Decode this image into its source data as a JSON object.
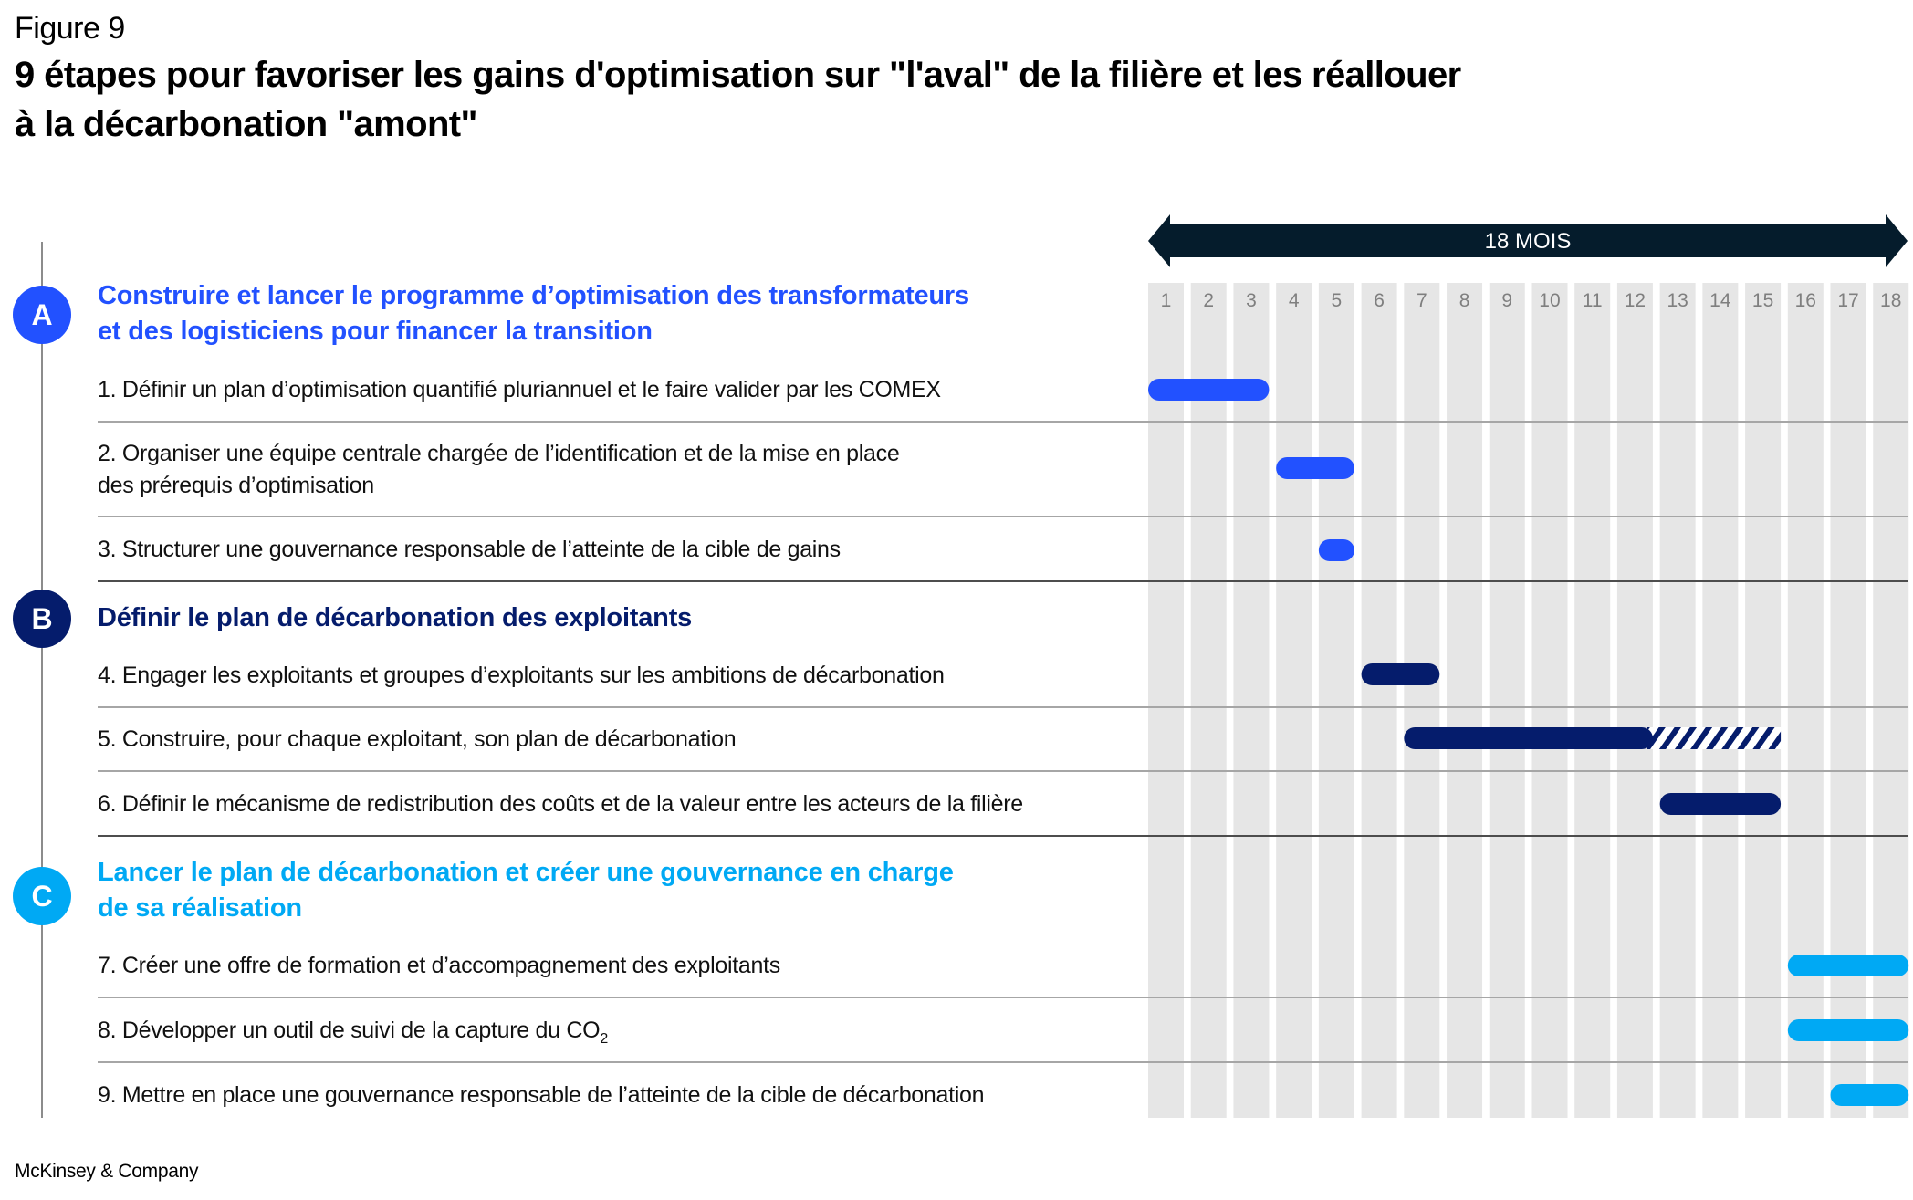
{
  "figure_label": "Figure 9",
  "title": {
    "line1": "9 étapes pour favoriser les gains d'optimisation sur \"l'aval\" de la filière et les réallouer",
    "line2": "à la décarbonation \"amont\""
  },
  "footer": "McKinsey & Company",
  "colors": {
    "section_A": "#2251ff",
    "section_B": "#051c6c",
    "section_C": "#00a9f4",
    "arrow": "#051c2c",
    "column_bg": "#e6e6e6",
    "column_label": "#7f7f7f"
  },
  "chart_data": {
    "type": "gantt",
    "title": "9 étapes pour favoriser les gains d'optimisation sur \"l'aval\" de la filière et les réallouer à la décarbonation \"amont\"",
    "timeline_label": "18 MOIS",
    "x_ticks": [
      "1",
      "2",
      "3",
      "4",
      "5",
      "6",
      "7",
      "8",
      "9",
      "10",
      "11",
      "12",
      "13",
      "14",
      "15",
      "16",
      "17",
      "18"
    ],
    "xlim": [
      1,
      18
    ],
    "sections": [
      {
        "letter": "A",
        "heading_lines": [
          "Construire et lancer le programme d’optimisation des transformateurs",
          "et des logisticiens pour financer la transition"
        ],
        "color": "#2251ff",
        "tasks": [
          {
            "lines": [
              "1. Définir un plan d’optimisation quantifié pluriannuel et le faire valider par les COMEX"
            ],
            "start": 1,
            "end": 3
          },
          {
            "lines": [
              "2. Organiser une équipe centrale chargée de l’identification et de la mise en place",
              "des prérequis d’optimisation"
            ],
            "start": 4,
            "end": 5
          },
          {
            "lines": [
              "3. Structurer une gouvernance responsable de l’atteinte de la cible de gains"
            ],
            "start": 5,
            "end": 5
          }
        ]
      },
      {
        "letter": "B",
        "heading_lines": [
          "Définir le plan de décarbonation des exploitants"
        ],
        "color": "#051c6c",
        "tasks": [
          {
            "lines": [
              "4. Engager les exploitants et groupes d’exploitants sur les ambitions de décarbonation"
            ],
            "start": 6,
            "end": 7
          },
          {
            "lines": [
              "5. Construire, pour chaque exploitant, son plan de décarbonation"
            ],
            "start": 7,
            "end": 12,
            "hatched_start": 13,
            "hatched_end": 15
          },
          {
            "lines": [
              "6. Définir le mécanisme de redistribution des coûts et de la valeur entre les acteurs de la filière"
            ],
            "start": 13,
            "end": 15
          }
        ]
      },
      {
        "letter": "C",
        "heading_lines": [
          "Lancer le plan de décarbonation et créer une gouvernance en charge",
          "de sa réalisation"
        ],
        "color": "#00a9f4",
        "tasks": [
          {
            "lines": [
              "7. Créer une offre de formation et d’accompagnement des exploitants"
            ],
            "start": 16,
            "end": 18
          },
          {
            "lines": [
              "8. Développer un outil de suivi de la capture du CO"
            ],
            "subscript": "2",
            "start": 16,
            "end": 18
          },
          {
            "lines": [
              "9. Mettre en place une gouvernance responsable de l’atteinte de la cible de décarbonation"
            ],
            "start": 17,
            "end": 18
          }
        ]
      }
    ]
  }
}
